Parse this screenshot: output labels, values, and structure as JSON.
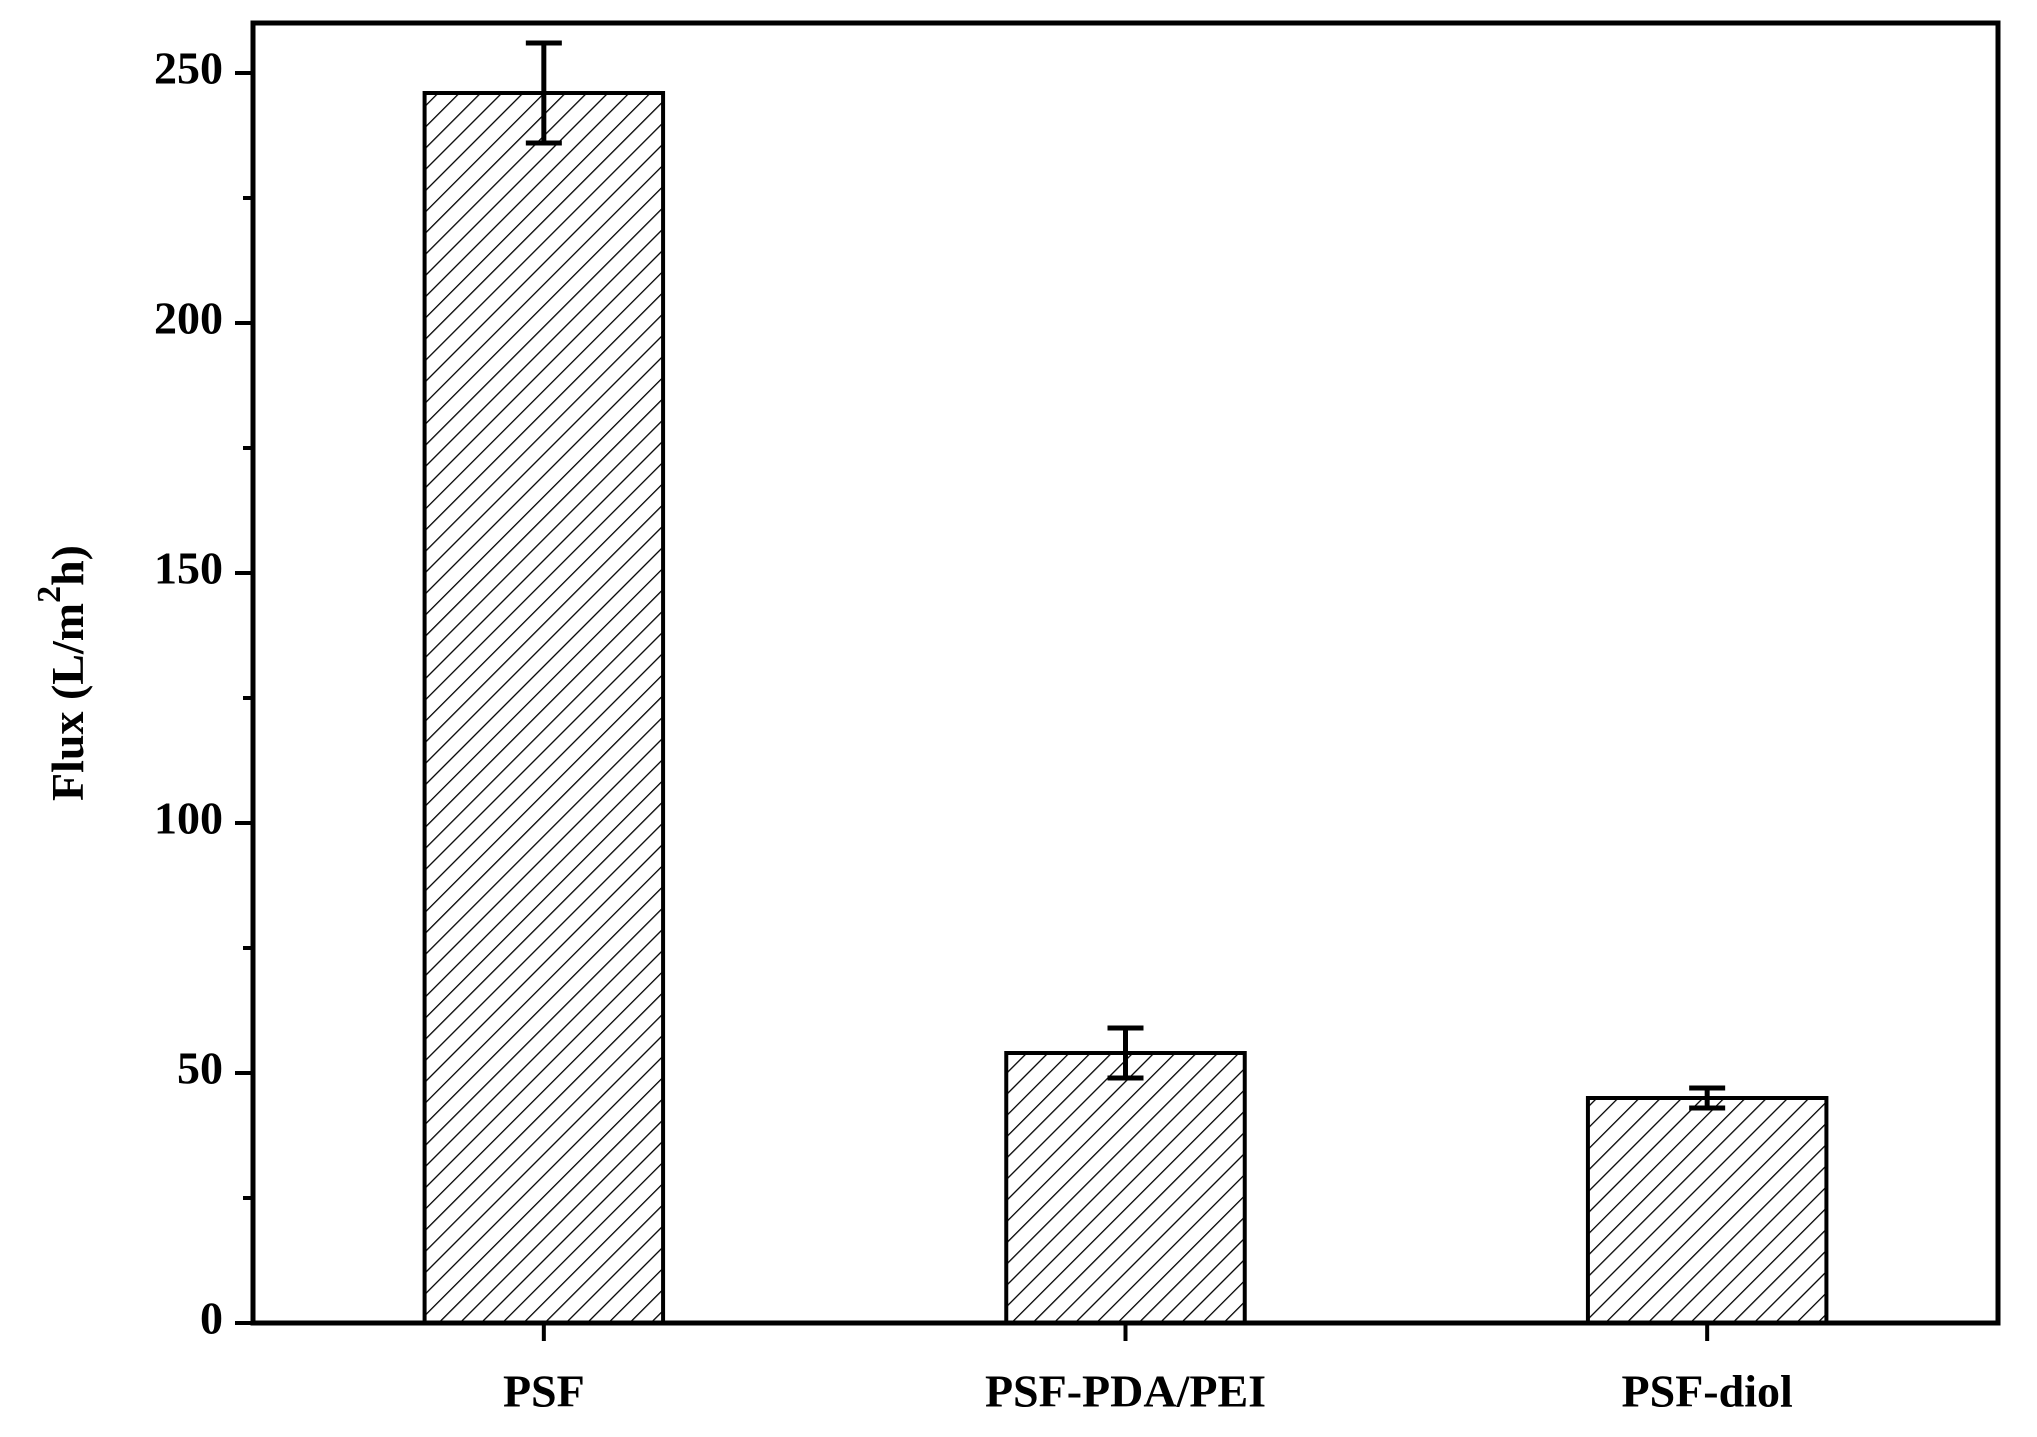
{
  "chart_data": {
    "type": "bar",
    "ylabel": [
      "Flux (L/m",
      "2",
      "h)"
    ],
    "categories": [
      "PSF",
      "PSF-PDA/PEI",
      "PSF-diol"
    ],
    "values": [
      246,
      54,
      45
    ],
    "errors": [
      10,
      5,
      2
    ],
    "color": "#000000",
    "hatch": "/",
    "ylim": [
      0,
      260
    ],
    "yticks": [
      0,
      50,
      100,
      150,
      200,
      250
    ],
    "minor_yticks": [
      25,
      75,
      125,
      175,
      225
    ]
  }
}
